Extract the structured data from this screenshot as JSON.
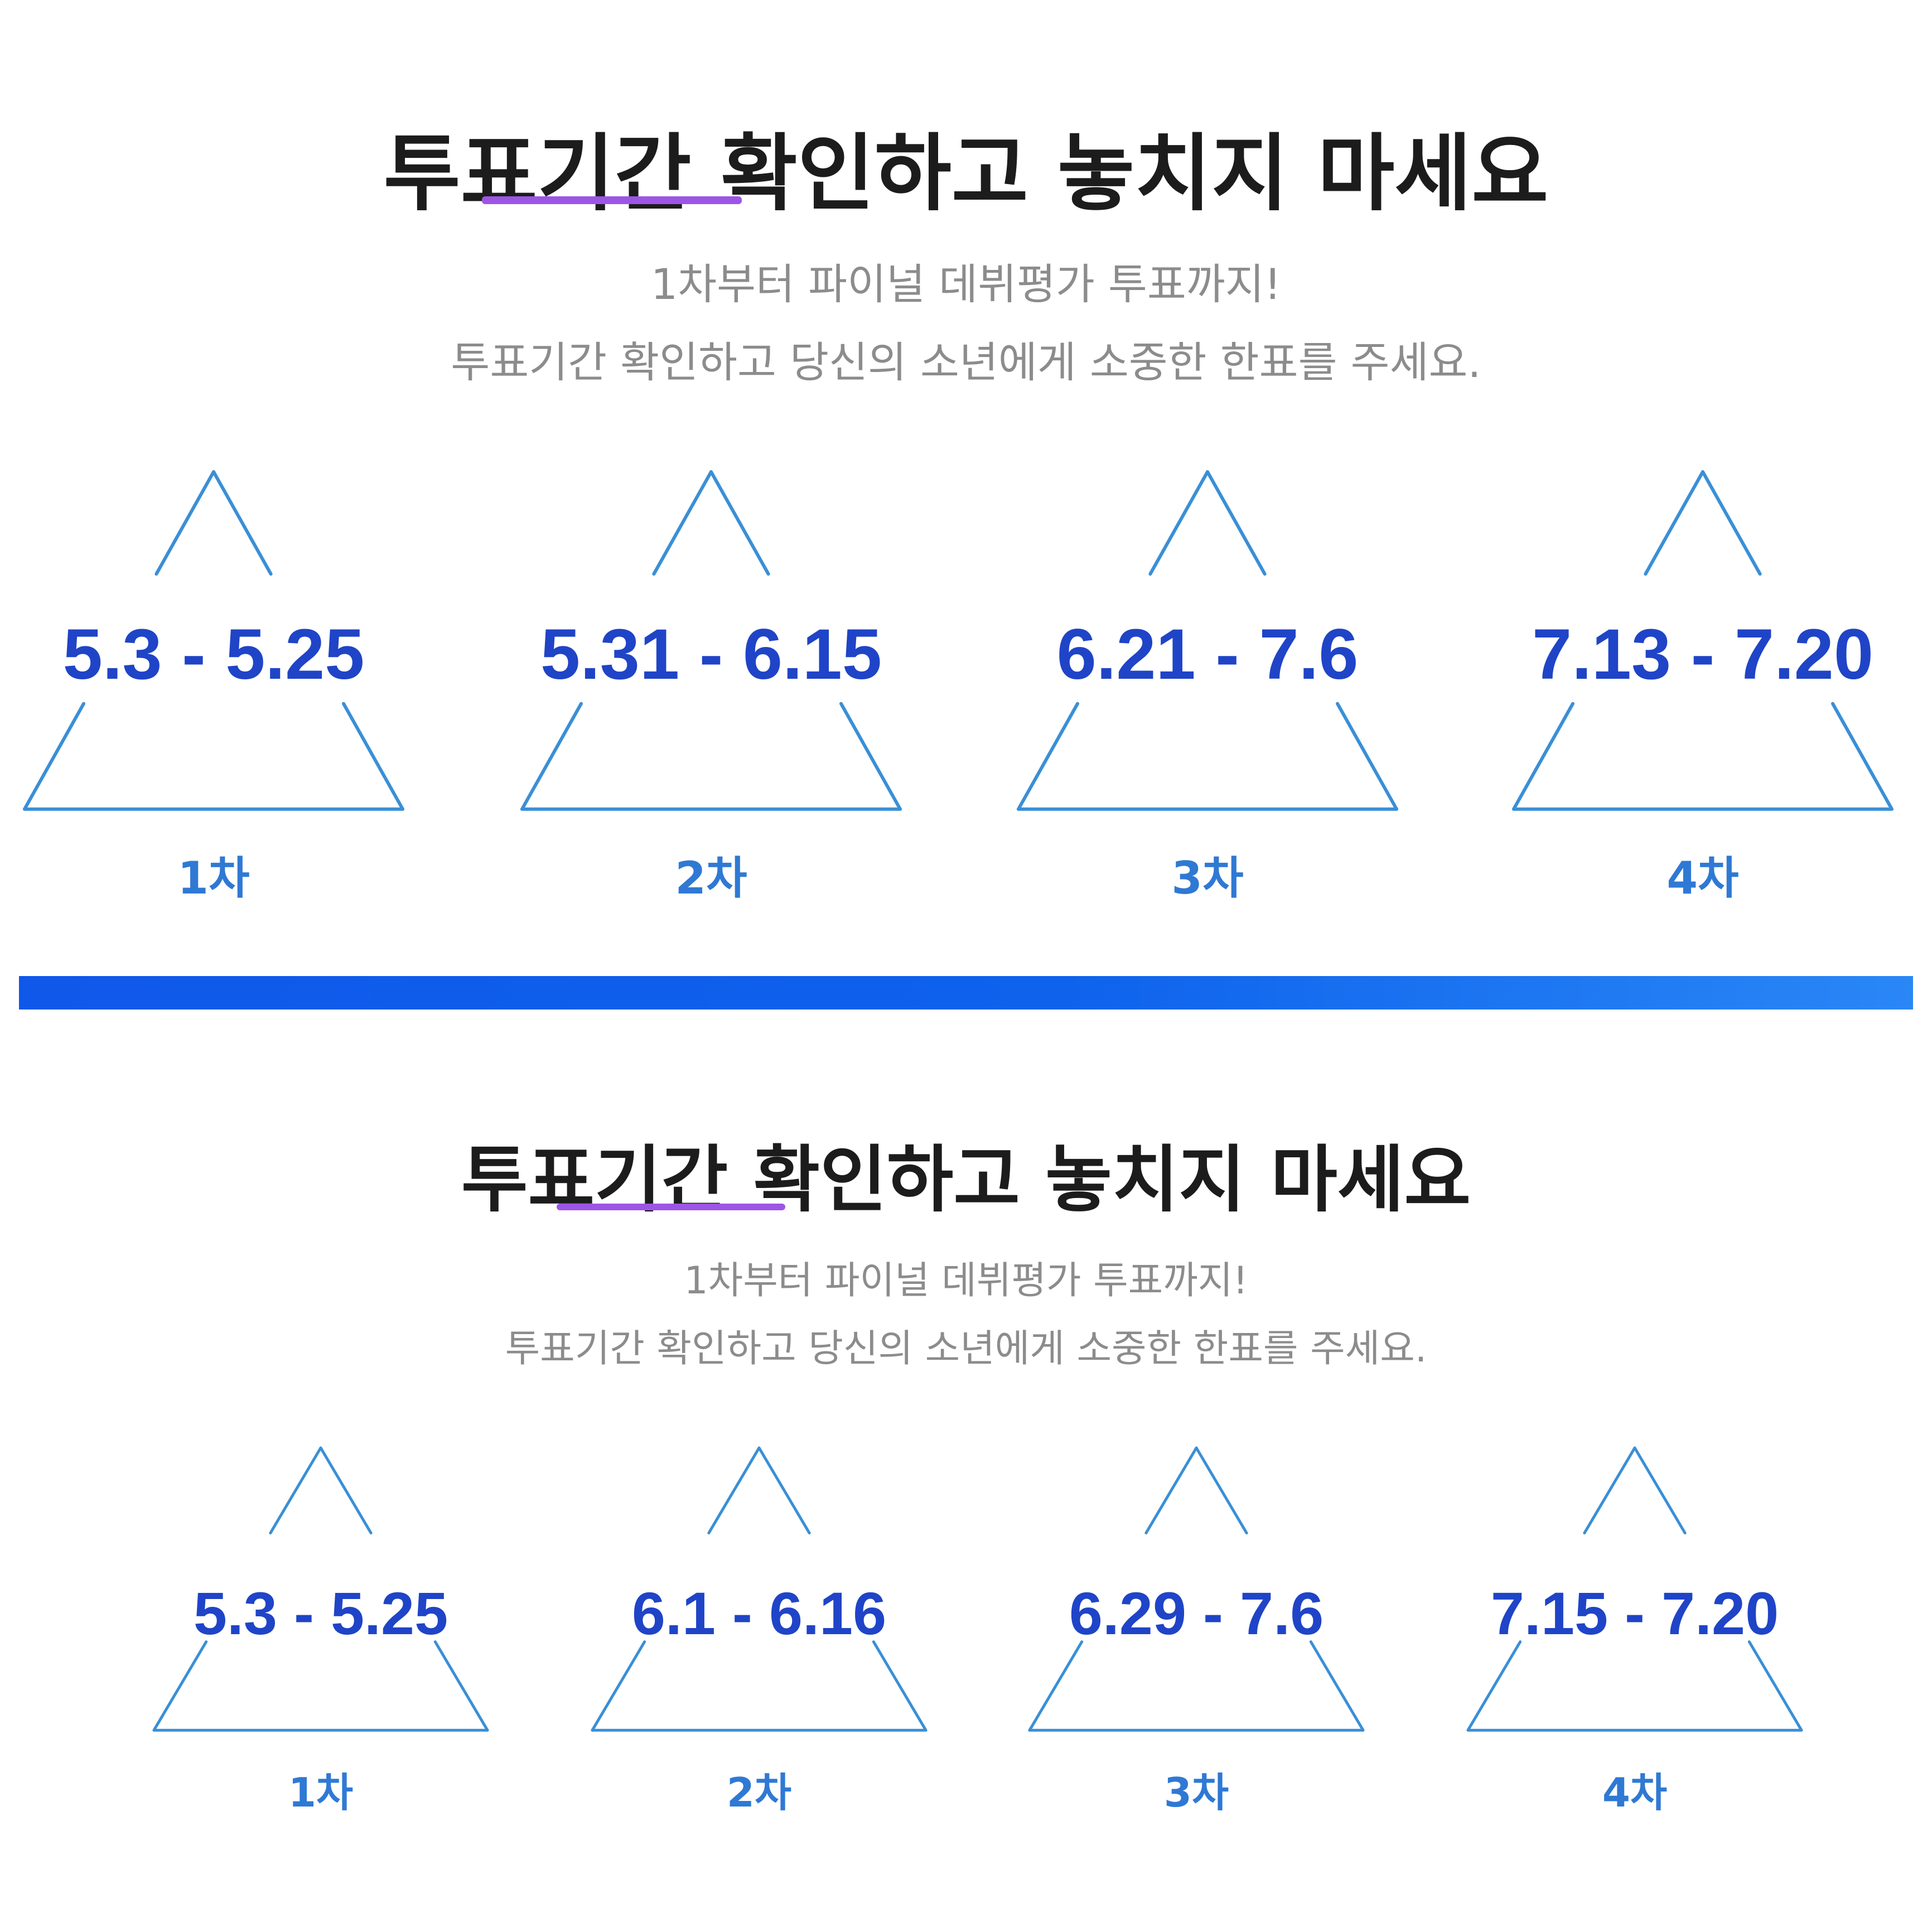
{
  "colors": {
    "title": "#1c1c1c",
    "underline": "#9d55e5",
    "subtitle": "#8c8c8c",
    "date": "#1f44c7",
    "round": "#2f79d4",
    "triangle_line": "#3a8fd6",
    "divider": "#1058ea"
  },
  "icons": [
    "triangle-frame-icon"
  ],
  "section1": {
    "title": "투표기간 확인하고 놓치지 마세요",
    "subtitle_line1": "1차부터 파이널 데뷔평가 투표까지!",
    "subtitle_line2": "투표기간 확인하고 당신의 소년에게 소중한 한표를 주세요.",
    "periods": [
      {
        "date": "5.3 - 5.25",
        "round": "1차"
      },
      {
        "date": "5.31 - 6.15",
        "round": "2차"
      },
      {
        "date": "6.21 - 7.6",
        "round": "3차"
      },
      {
        "date": "7.13 - 7.20",
        "round": "4차"
      }
    ]
  },
  "section2": {
    "title": "투표기간 확인하고 놓치지 마세요",
    "subtitle_line1": "1차부터 파이널 데뷔평가 투표까지!",
    "subtitle_line2": "투표기간 확인하고 당신의 소년에게 소중한 한표를 주세요.",
    "periods": [
      {
        "date": "5.3 - 5.25",
        "round": "1차"
      },
      {
        "date": "6.1 - 6.16",
        "round": "2차"
      },
      {
        "date": "6.29 - 7.6",
        "round": "3차"
      },
      {
        "date": "7.15 - 7.20",
        "round": "4차"
      }
    ]
  }
}
